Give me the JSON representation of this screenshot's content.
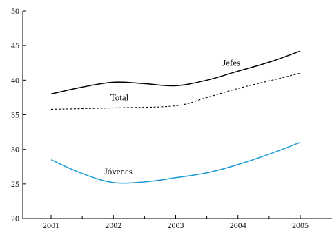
{
  "chart_data": {
    "type": "line",
    "title": "",
    "xlabel": "",
    "ylabel": "",
    "x": [
      2001,
      2002,
      2003,
      2004,
      2005
    ],
    "xlim": [
      2000.6,
      2005.3
    ],
    "ylim": [
      20,
      50
    ],
    "yticks": [
      20,
      25,
      30,
      35,
      40,
      45,
      50
    ],
    "xticks": [
      2001,
      2002,
      2003,
      2004,
      2005
    ],
    "grid": false,
    "legend": "none (series labeled inline)",
    "series": [
      {
        "name": "Jefes",
        "color": "#000000",
        "style": "solid",
        "label_at": {
          "x": 2003.75,
          "y": 42.1
        },
        "points": [
          {
            "x": 2001.0,
            "y": 38.0
          },
          {
            "x": 2001.5,
            "y": 39.0
          },
          {
            "x": 2002.0,
            "y": 39.7
          },
          {
            "x": 2002.5,
            "y": 39.5
          },
          {
            "x": 2003.0,
            "y": 39.2
          },
          {
            "x": 2003.5,
            "y": 40.0
          },
          {
            "x": 2004.0,
            "y": 41.3
          },
          {
            "x": 2004.5,
            "y": 42.6
          },
          {
            "x": 2005.0,
            "y": 44.2
          }
        ]
      },
      {
        "name": "Total",
        "color": "#000000",
        "style": "dashed",
        "label_at": {
          "x": 2001.95,
          "y": 37.1
        },
        "points": [
          {
            "x": 2001.0,
            "y": 35.8
          },
          {
            "x": 2002.0,
            "y": 36.0
          },
          {
            "x": 2003.0,
            "y": 36.3
          },
          {
            "x": 2003.5,
            "y": 37.5
          },
          {
            "x": 2004.0,
            "y": 38.8
          },
          {
            "x": 2004.5,
            "y": 39.9
          },
          {
            "x": 2005.0,
            "y": 41.0
          }
        ]
      },
      {
        "name": "Jóvenes",
        "color": "#1a9bd7",
        "style": "solid",
        "label_at": {
          "x": 2001.85,
          "y": 26.4
        },
        "points": [
          {
            "x": 2001.0,
            "y": 28.5
          },
          {
            "x": 2001.5,
            "y": 26.5
          },
          {
            "x": 2002.0,
            "y": 25.2
          },
          {
            "x": 2002.5,
            "y": 25.3
          },
          {
            "x": 2003.0,
            "y": 25.9
          },
          {
            "x": 2003.5,
            "y": 26.6
          },
          {
            "x": 2004.0,
            "y": 27.8
          },
          {
            "x": 2004.5,
            "y": 29.3
          },
          {
            "x": 2005.0,
            "y": 31.0
          }
        ]
      }
    ]
  }
}
